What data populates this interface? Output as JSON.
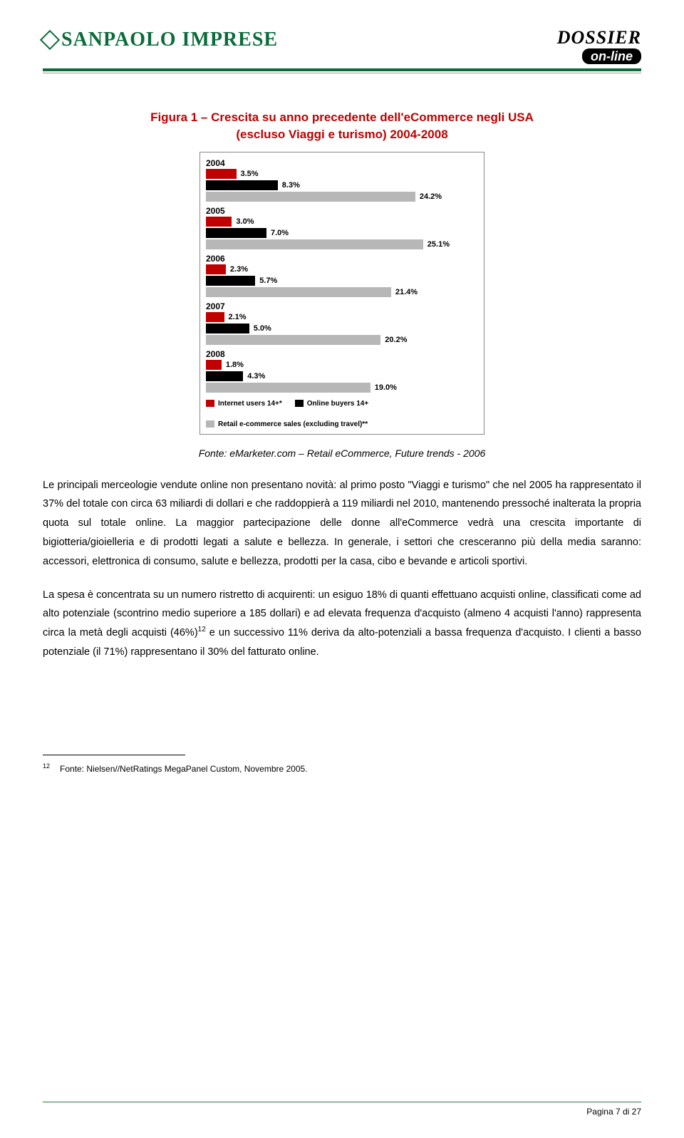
{
  "header": {
    "logo_left": "SANPAOLO  IMPRESE",
    "logo_right_top": "DOSSIER",
    "logo_right_bottom": "on-line"
  },
  "figure": {
    "title_line1": "Figura 1 – Crescita su anno precedente dell'eCommerce negli USA",
    "title_line2": "(escluso Viaggi e turismo) 2004-2008"
  },
  "chart": {
    "type": "bar",
    "max_value": 28,
    "bar_colors": {
      "red": "#c00000",
      "black": "#000000",
      "grey": "#b7b7b7"
    },
    "groups": [
      {
        "year": "2004",
        "bars": [
          {
            "color": "red",
            "value": 3.5,
            "label": "3.5%"
          },
          {
            "color": "black",
            "value": 8.3,
            "label": "8.3%"
          },
          {
            "color": "grey",
            "value": 24.2,
            "label": "24.2%"
          }
        ]
      },
      {
        "year": "2005",
        "bars": [
          {
            "color": "red",
            "value": 3.0,
            "label": "3.0%"
          },
          {
            "color": "black",
            "value": 7.0,
            "label": "7.0%"
          },
          {
            "color": "grey",
            "value": 25.1,
            "label": "25.1%"
          }
        ]
      },
      {
        "year": "2006",
        "bars": [
          {
            "color": "red",
            "value": 2.3,
            "label": "2.3%"
          },
          {
            "color": "black",
            "value": 5.7,
            "label": "5.7%"
          },
          {
            "color": "grey",
            "value": 21.4,
            "label": "21.4%"
          }
        ]
      },
      {
        "year": "2007",
        "bars": [
          {
            "color": "red",
            "value": 2.1,
            "label": "2.1%"
          },
          {
            "color": "black",
            "value": 5.0,
            "label": "5.0%"
          },
          {
            "color": "grey",
            "value": 20.2,
            "label": "20.2%"
          }
        ]
      },
      {
        "year": "2008",
        "bars": [
          {
            "color": "red",
            "value": 1.8,
            "label": "1.8%"
          },
          {
            "color": "black",
            "value": 4.3,
            "label": "4.3%"
          },
          {
            "color": "grey",
            "value": 19.0,
            "label": "19.0%"
          }
        ]
      }
    ],
    "legend": [
      {
        "color": "red",
        "label": "Internet users 14+*"
      },
      {
        "color": "black",
        "label": "Online buyers 14+"
      },
      {
        "color": "grey",
        "label": "Retail e-commerce sales (excluding travel)**"
      }
    ]
  },
  "source": "Fonte: eMarketer.com – Retail eCommerce, Future trends - 2006",
  "para1": "Le principali merceologie vendute online non presentano novità: al primo posto \"Viaggi e turismo\" che nel 2005 ha rappresentato il 37% del totale con circa 63 miliardi di dollari e che raddoppierà a 119 miliardi nel 2010, mantenendo pressoché inalterata la propria quota sul totale online. La maggior partecipazione delle donne all'eCommerce vedrà una crescita importante di bigiotteria/gioielleria e di prodotti legati a salute e bellezza. In generale, i settori che cresceranno più della media saranno: accessori, elettronica di consumo, salute e bellezza, prodotti per la casa, cibo e bevande e articoli sportivi.",
  "para2_a": "La spesa è concentrata su un numero ristretto di acquirenti: un esiguo 18% di quanti effettuano acquisti online, classificati come ad alto potenziale (scontrino medio superiore a 185 dollari) e ad elevata frequenza d'acquisto (almeno 4 acquisti l'anno) rappresenta circa la metà degli acquisti (46%)",
  "para2_sup": "12",
  "para2_b": " e un successivo 11% deriva da alto-potenziali a bassa frequenza d'acquisto. I clienti a basso potenziale (il 71%) rappresentano il 30% del fatturato online.",
  "footnote": {
    "num": "12",
    "text": "Fonte: Nielsen//NetRatings MegaPanel Custom, Novembre 2005."
  },
  "page_number": "Pagina 7 di 27"
}
